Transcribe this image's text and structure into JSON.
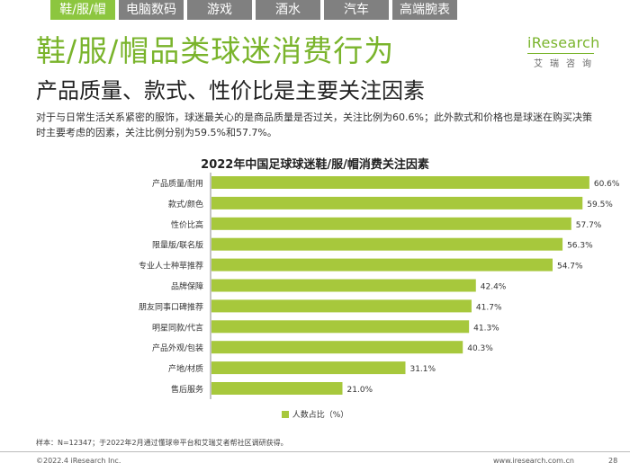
{
  "tabs": [
    {
      "label": "鞋/服/帽",
      "active": true
    },
    {
      "label": "电脑数码",
      "active": false
    },
    {
      "label": "游戏",
      "active": false
    },
    {
      "label": "酒水",
      "active": false
    },
    {
      "label": "汽车",
      "active": false
    },
    {
      "label": "高端腕表",
      "active": false
    }
  ],
  "title": "鞋/服/帽品类球迷消费行为",
  "subtitle": "产品质量、款式、性价比是主要关注因素",
  "logo": {
    "word": "iResearch",
    "sub": "艾瑞咨询"
  },
  "description": "对于与日常生活关系紧密的服饰，球迷最关心的是商品质量是否过关，关注比例为60.6%；此外款式和价格也是球迷在购买决策时主要考虑的因素，关注比例分别为59.5%和57.7%。",
  "colors": {
    "accent": "#7ab42c",
    "bar": "#a7c83c",
    "tab_active": "#8cc63f",
    "tab_inactive": "#808080"
  },
  "chart_data": {
    "type": "bar",
    "orientation": "horizontal",
    "title": "2022年中国足球球迷鞋/服/帽消费关注因素",
    "categories": [
      "产品质量/耐用",
      "款式/颜色",
      "性价比高",
      "限量版/联名版",
      "专业人士种草推荐",
      "品牌保障",
      "朋友同事口碑推荐",
      "明星同款/代言",
      "产品外观/包装",
      "产地/材质",
      "售后服务"
    ],
    "series": [
      {
        "name": "人数占比（%）",
        "values": [
          60.6,
          59.5,
          57.7,
          56.3,
          54.7,
          42.4,
          41.7,
          41.3,
          40.3,
          31.1,
          21.0
        ]
      }
    ],
    "value_labels": [
      "60.6%",
      "59.5%",
      "57.7%",
      "56.3%",
      "54.7%",
      "42.4%",
      "41.7%",
      "41.3%",
      "40.3%",
      "31.1%",
      "21.0%"
    ],
    "xlim": [
      0,
      70
    ],
    "grid": false,
    "legend_position": "bottom-center"
  },
  "note": "样本：N=12347；于2022年2月通过懂球帝平台和艾瑞艾者帮社区调研获得。",
  "copyright": "©2022.4 iResearch Inc.",
  "website": "www.iresearch.com.cn",
  "page_number": "28"
}
